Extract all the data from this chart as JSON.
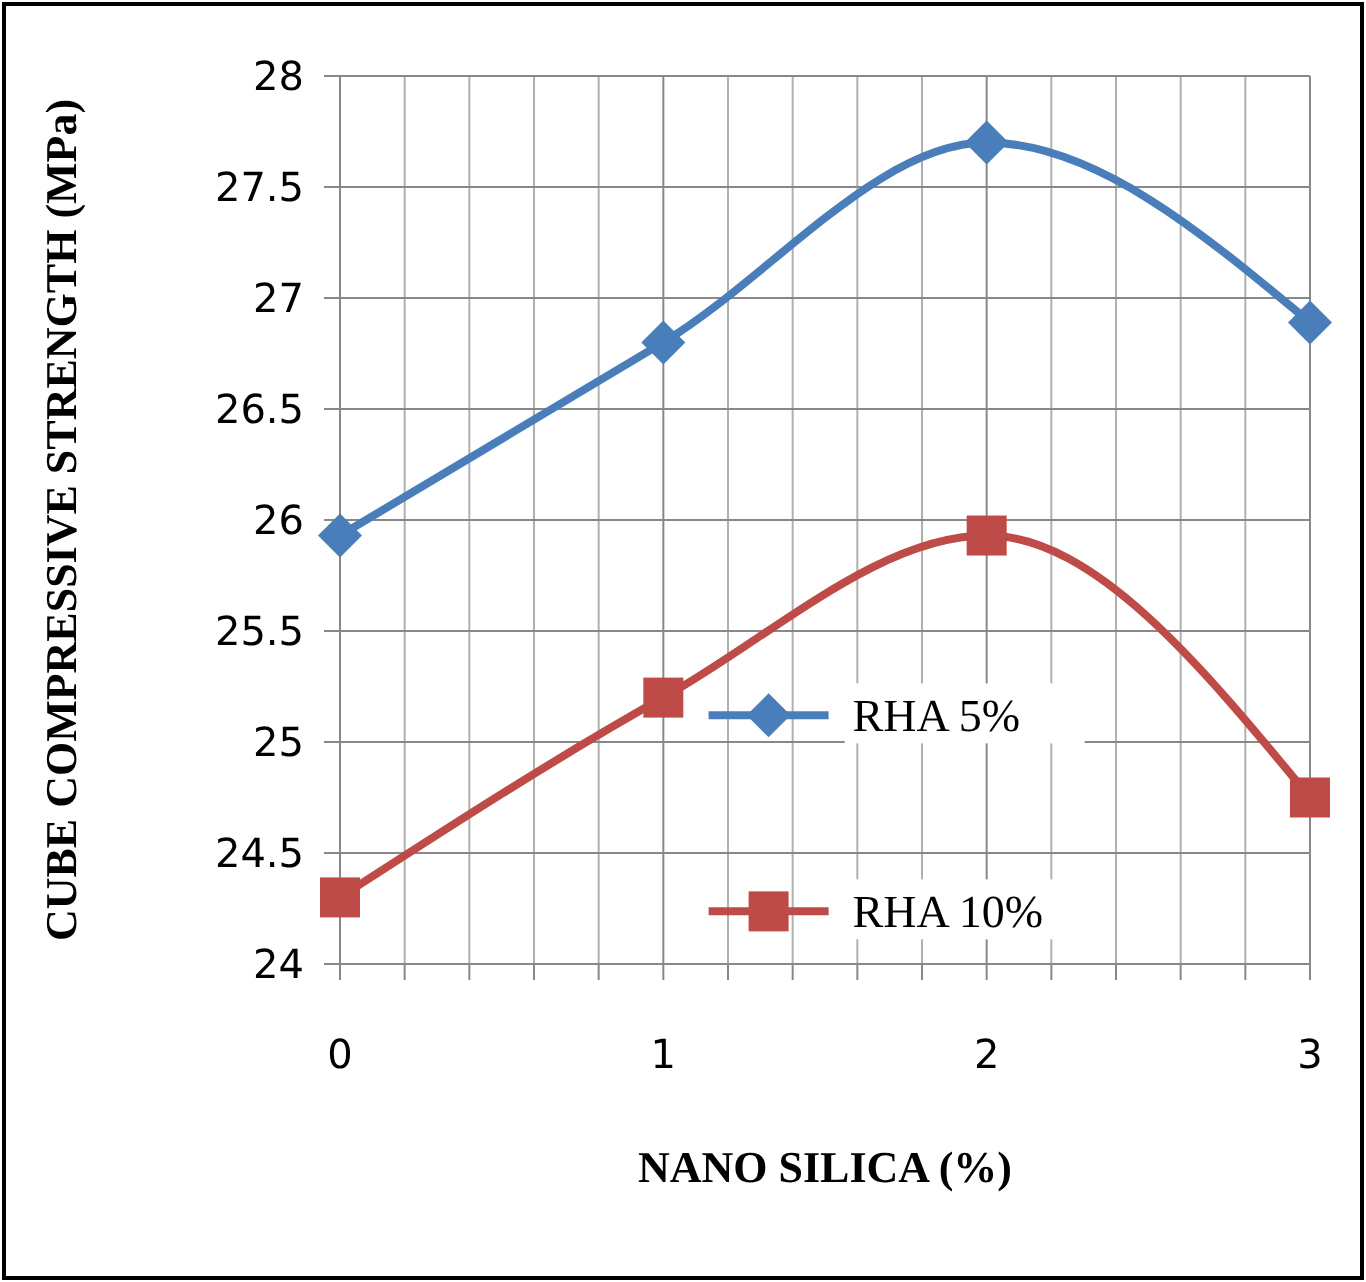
{
  "chart_data": {
    "type": "line",
    "xlabel": "NANO SILICA (%)",
    "ylabel": "CUBE COMPRESSIVE STRENGTH (MPa)",
    "x": [
      0,
      1,
      2,
      3
    ],
    "xlim": [
      0,
      3
    ],
    "xticks": [
      0,
      {
        "value": 0.2,
        "label": null
      },
      {
        "value": 0.4,
        "label": null
      },
      {
        "value": 0.6,
        "label": null
      },
      {
        "value": 0.8,
        "label": null
      },
      1,
      {
        "value": 1.2,
        "label": null
      },
      {
        "value": 1.4,
        "label": null
      },
      {
        "value": 1.6,
        "label": null
      },
      {
        "value": 1.8,
        "label": null
      },
      2,
      {
        "value": 2.2,
        "label": null
      },
      {
        "value": 2.4,
        "label": null
      },
      {
        "value": 2.6,
        "label": null
      },
      {
        "value": 2.8,
        "label": null
      },
      3
    ],
    "ylim": [
      24,
      28
    ],
    "yticks": [
      24,
      24.5,
      25,
      25.5,
      26,
      26.5,
      27,
      27.5,
      28
    ],
    "grid": true,
    "legend": "bottom",
    "line_style": "solid",
    "series": [
      {
        "name": "RHA 5%",
        "color": "#4a7ebb",
        "marker": "diamond",
        "values": [
          25.93,
          26.8,
          27.7,
          26.89
        ]
      },
      {
        "name": "RHA 10%",
        "color": "#be4b48",
        "marker": "square",
        "values": [
          24.3,
          25.2,
          25.93,
          24.75
        ]
      }
    ]
  }
}
